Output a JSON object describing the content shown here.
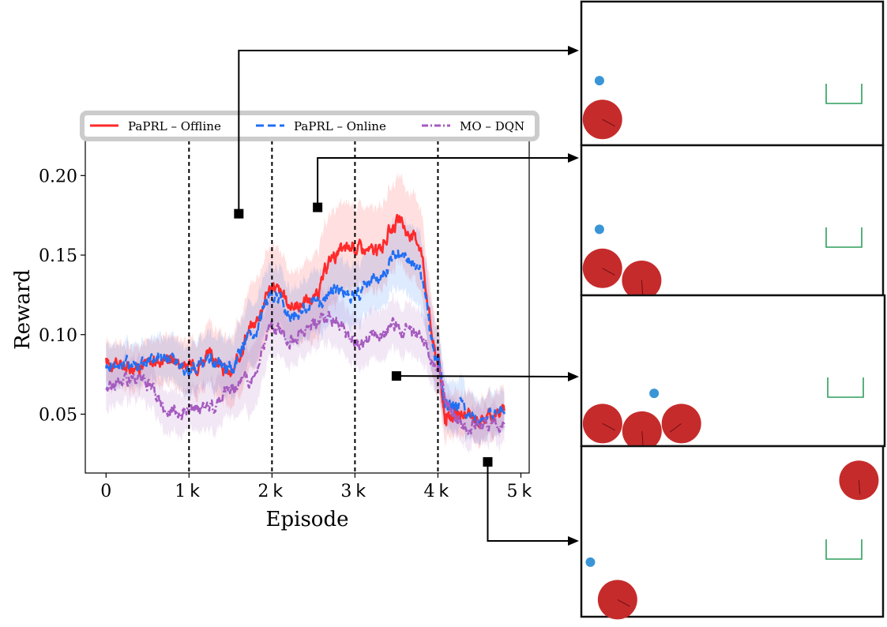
{
  "chart_data": {
    "type": "line",
    "xlabel": "Episode",
    "ylabel": "Reward",
    "xlim": [
      -0.25,
      5.1
    ],
    "ylim": [
      0.013,
      0.222
    ],
    "x_ticks": [
      {
        "value": 0,
        "label": "0"
      },
      {
        "value": 1,
        "label": "1",
        "suffix": "k"
      },
      {
        "value": 2,
        "label": "2",
        "suffix": "k"
      },
      {
        "value": 3,
        "label": "3",
        "suffix": "k"
      },
      {
        "value": 4,
        "label": "4",
        "suffix": "k"
      },
      {
        "value": 5,
        "label": "5",
        "suffix": "k"
      }
    ],
    "y_ticks": [
      {
        "value": 0.05,
        "label": "0.05"
      },
      {
        "value": 0.1,
        "label": "0.10"
      },
      {
        "value": 0.15,
        "label": "0.15"
      },
      {
        "value": 0.2,
        "label": "0.20"
      }
    ],
    "grid": false,
    "vlines": [
      1,
      2,
      3,
      4
    ],
    "legend_position": "top",
    "series": [
      {
        "name": "PaPRL – Offline",
        "color": "#ff2a2a",
        "style": "solid",
        "x": [
          0,
          0.25,
          0.5,
          0.75,
          1.0,
          1.25,
          1.5,
          1.75,
          2.0,
          2.25,
          2.5,
          2.75,
          3.0,
          3.25,
          3.5,
          3.75,
          4.0,
          4.1,
          4.25,
          4.5,
          4.8
        ],
        "values": [
          0.083,
          0.08,
          0.082,
          0.086,
          0.08,
          0.086,
          0.075,
          0.105,
          0.13,
          0.118,
          0.123,
          0.15,
          0.155,
          0.152,
          0.17,
          0.16,
          0.085,
          0.045,
          0.05,
          0.047,
          0.052
        ],
        "band": [
          0.012,
          0.012,
          0.012,
          0.014,
          0.015,
          0.018,
          0.02,
          0.025,
          0.025,
          0.02,
          0.025,
          0.028,
          0.025,
          0.025,
          0.025,
          0.025,
          0.02,
          0.012,
          0.012,
          0.012,
          0.012
        ]
      },
      {
        "name": "PaPRL – Online",
        "color": "#1f6ff5",
        "style": "dashed",
        "x": [
          0,
          0.25,
          0.5,
          0.75,
          1.0,
          1.25,
          1.5,
          1.75,
          2.0,
          2.25,
          2.5,
          2.75,
          3.0,
          3.25,
          3.5,
          3.75,
          4.0,
          4.1,
          4.25,
          4.5,
          4.8
        ],
        "values": [
          0.081,
          0.082,
          0.083,
          0.085,
          0.078,
          0.083,
          0.078,
          0.1,
          0.125,
          0.113,
          0.118,
          0.128,
          0.126,
          0.133,
          0.15,
          0.145,
          0.085,
          0.055,
          0.056,
          0.048,
          0.05
        ],
        "band": [
          0.012,
          0.012,
          0.012,
          0.012,
          0.014,
          0.015,
          0.016,
          0.018,
          0.018,
          0.016,
          0.018,
          0.018,
          0.018,
          0.018,
          0.02,
          0.022,
          0.018,
          0.014,
          0.014,
          0.012,
          0.012
        ]
      },
      {
        "name": "MO – DQN",
        "color": "#a55bbf",
        "style": "dashdot",
        "x": [
          0,
          0.25,
          0.5,
          0.75,
          1.0,
          1.25,
          1.5,
          1.75,
          2.0,
          2.25,
          2.5,
          2.75,
          3.0,
          3.25,
          3.5,
          3.75,
          4.0,
          4.1,
          4.25,
          4.5,
          4.8
        ],
        "values": [
          0.067,
          0.072,
          0.068,
          0.052,
          0.053,
          0.055,
          0.067,
          0.072,
          0.105,
          0.097,
          0.108,
          0.11,
          0.093,
          0.098,
          0.105,
          0.1,
          0.08,
          0.058,
          0.045,
          0.042,
          0.042
        ],
        "band": [
          0.012,
          0.012,
          0.012,
          0.012,
          0.012,
          0.014,
          0.016,
          0.02,
          0.016,
          0.014,
          0.015,
          0.015,
          0.014,
          0.014,
          0.014,
          0.014,
          0.014,
          0.012,
          0.01,
          0.01,
          0.01
        ]
      }
    ]
  },
  "markers": [
    {
      "name": "marker-1",
      "x": 1.6,
      "y": 0.176,
      "panel": 0
    },
    {
      "name": "marker-2",
      "x": 2.55,
      "y": 0.18,
      "panel": 1
    },
    {
      "name": "marker-3",
      "x": 3.5,
      "y": 0.074,
      "panel": 2
    },
    {
      "name": "marker-4",
      "x": 4.6,
      "y": 0.02,
      "panel": 3
    }
  ],
  "panels": [
    {
      "ball": [
        0.06,
        0.55
      ],
      "circles": [
        [
          0.07,
          0.82
        ]
      ]
    },
    {
      "ball": [
        0.06,
        0.56
      ],
      "circles": [
        [
          0.07,
          0.82
        ],
        [
          0.2,
          0.9
        ]
      ]
    },
    {
      "ball": [
        0.24,
        0.65
      ],
      "circles": [
        [
          0.07,
          0.85
        ],
        [
          0.2,
          0.9
        ],
        [
          0.33,
          0.85
        ]
      ]
    },
    {
      "ball": [
        0.03,
        0.68
      ],
      "circles": [
        [
          0.12,
          0.9
        ],
        [
          0.92,
          0.2
        ]
      ]
    }
  ],
  "colors": {
    "axis": "#000000",
    "ball": "#3a95d6",
    "circle": "#c62b2b",
    "goal": "#2e9e5b",
    "legend_frame": "#cccccc"
  },
  "axis_suffix_font": "sans"
}
